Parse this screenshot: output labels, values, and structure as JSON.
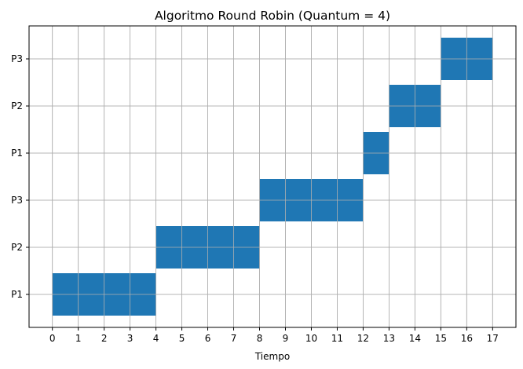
{
  "chart_data": {
    "type": "gantt",
    "title": "Algoritmo Round Robin (Quantum = 4)",
    "xlabel": "Tiempo",
    "ylabel": "",
    "xlim": [
      -0.9,
      17.9
    ],
    "x_ticks": [
      0,
      1,
      2,
      3,
      4,
      5,
      6,
      7,
      8,
      9,
      10,
      11,
      12,
      13,
      14,
      15,
      16,
      17
    ],
    "y_labels": [
      "P1",
      "P2",
      "P3",
      "P1",
      "P2",
      "P3"
    ],
    "grid": true,
    "bar_color": "#1f77b4",
    "bars": [
      {
        "row": 0,
        "label": "P1",
        "start": 0,
        "end": 4
      },
      {
        "row": 1,
        "label": "P2",
        "start": 4,
        "end": 8
      },
      {
        "row": 2,
        "label": "P3",
        "start": 8,
        "end": 12
      },
      {
        "row": 3,
        "label": "P1",
        "start": 12,
        "end": 13
      },
      {
        "row": 4,
        "label": "P2",
        "start": 13,
        "end": 15
      },
      {
        "row": 5,
        "label": "P3",
        "start": 15,
        "end": 17
      }
    ]
  }
}
